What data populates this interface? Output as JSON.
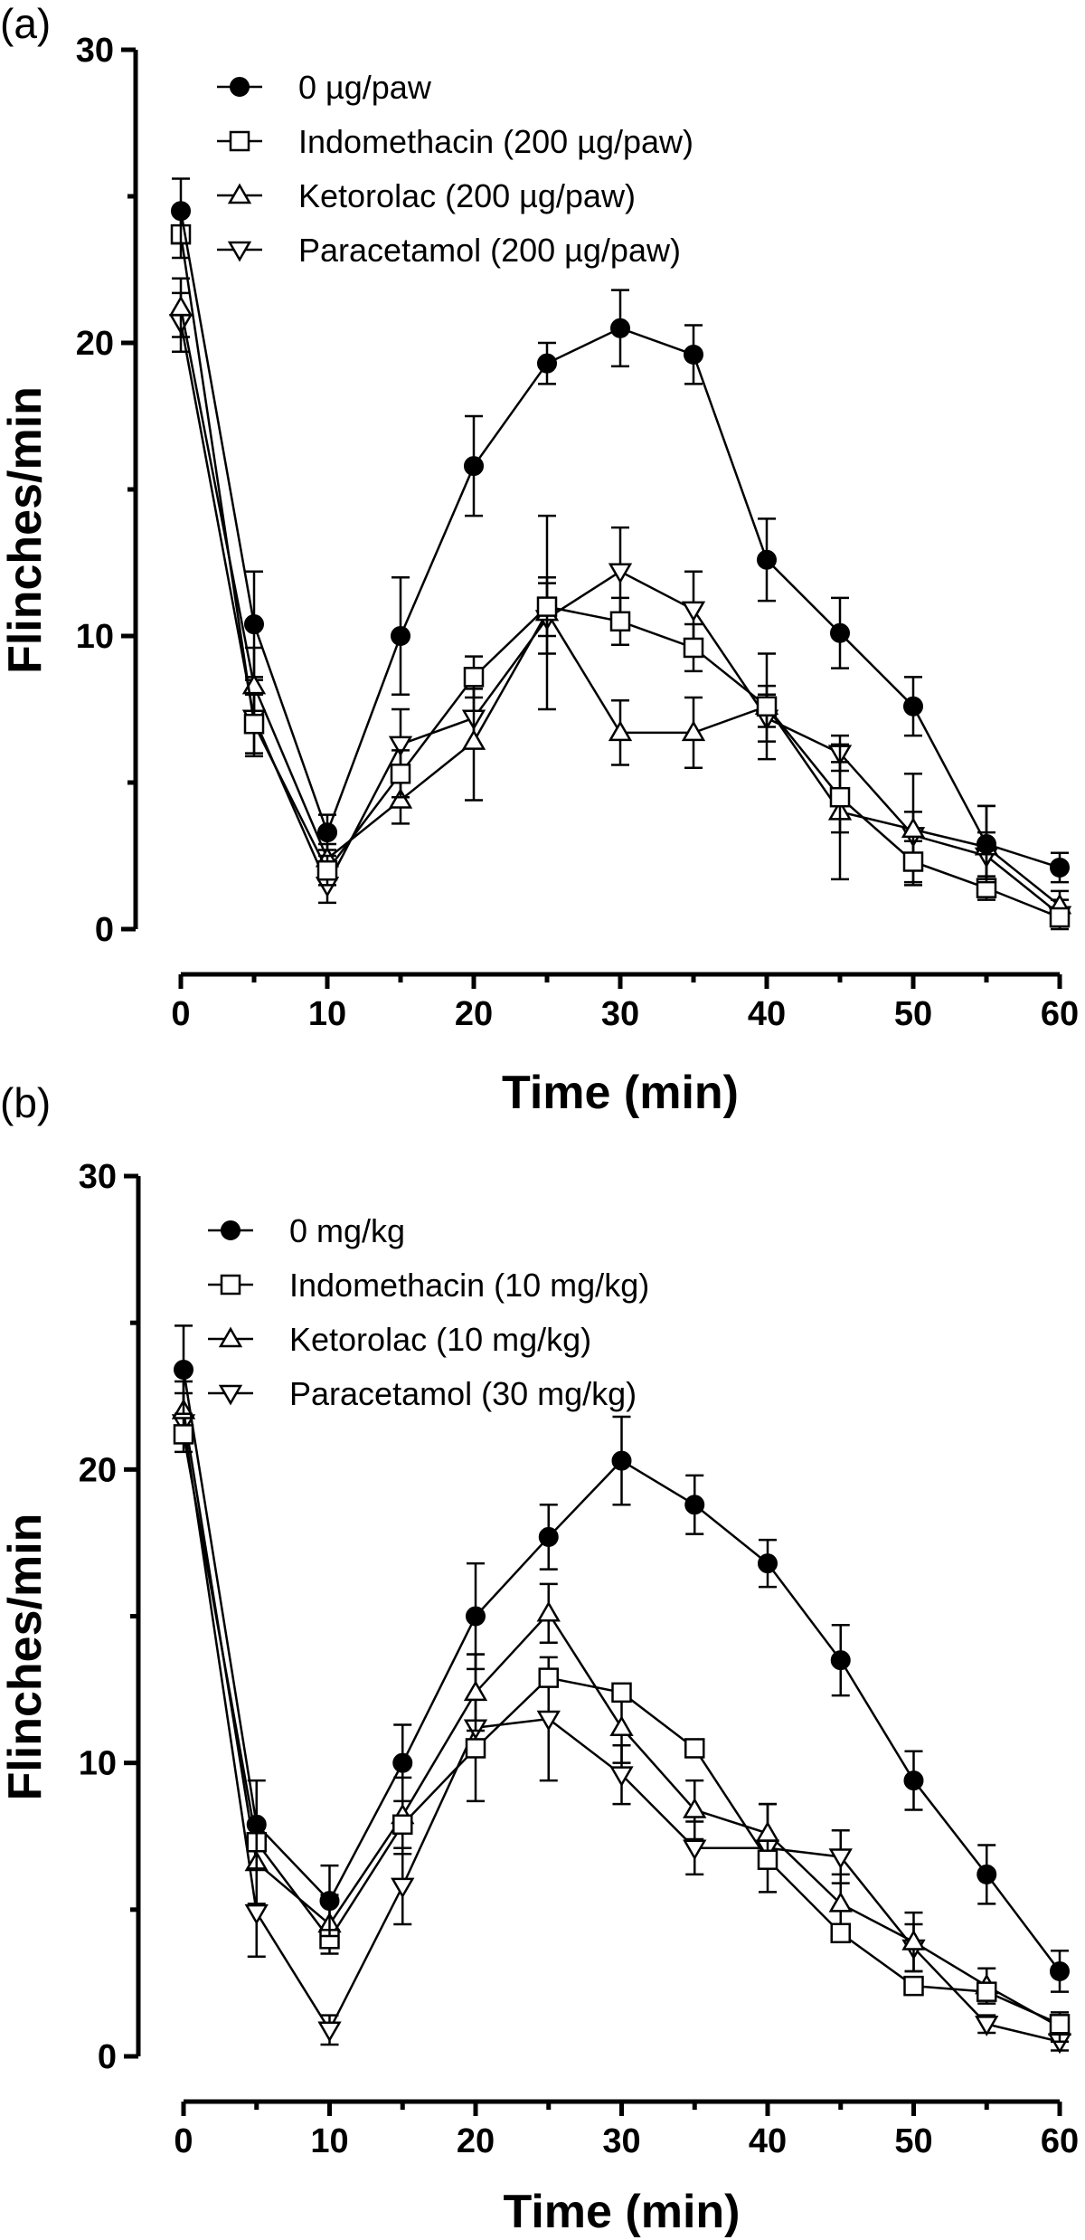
{
  "chart_data": [
    {
      "type": "line",
      "panel_label": "(a)",
      "xlabel": "Time (min)",
      "ylabel": "Flinches/min",
      "xlim": [
        0,
        60
      ],
      "ylim": [
        0,
        30
      ],
      "xticks": [
        0,
        10,
        20,
        30,
        40,
        50,
        60
      ],
      "yticks": [
        0,
        10,
        20,
        30
      ],
      "legend_position": "top-left",
      "x": [
        0,
        5,
        10,
        15,
        20,
        25,
        30,
        35,
        40,
        45,
        50,
        55,
        60
      ],
      "series": [
        {
          "name": "0 µg/paw",
          "marker": "circle-filled",
          "values": [
            24.5,
            10.4,
            3.3,
            10.0,
            15.8,
            19.3,
            20.5,
            19.6,
            12.6,
            10.1,
            7.6,
            2.9,
            2.1
          ],
          "errors": [
            1.1,
            1.8,
            0.6,
            2.0,
            1.7,
            0.7,
            1.3,
            1.0,
            1.4,
            1.2,
            1.0,
            1.3,
            0.5
          ]
        },
        {
          "name": "Indomethacin (200 µg/paw)",
          "marker": "square-open",
          "values": [
            23.7,
            7.0,
            2.0,
            5.3,
            8.6,
            11.0,
            10.5,
            9.6,
            7.6,
            4.5,
            2.3,
            1.4,
            0.4
          ],
          "errors": [
            0.8,
            1.0,
            0.5,
            0.8,
            0.7,
            1.0,
            0.8,
            0.8,
            0.7,
            1.2,
            0.7,
            0.4,
            0.3
          ]
        },
        {
          "name": "Ketorolac (200 µg/paw)",
          "marker": "triangle-up-open",
          "values": [
            21.2,
            8.3,
            2.4,
            4.4,
            6.4,
            10.8,
            6.7,
            6.7,
            7.6,
            4.0,
            3.4,
            2.8,
            0.8
          ],
          "errors": [
            1.0,
            1.3,
            0.5,
            0.8,
            2.0,
            3.3,
            1.1,
            1.2,
            1.8,
            2.3,
            1.9,
            1.4,
            0.5
          ]
        },
        {
          "name": "Paracetamol (200 µg/paw)",
          "marker": "triangle-down-open",
          "values": [
            20.7,
            7.2,
            1.5,
            6.3,
            7.2,
            10.6,
            12.2,
            10.9,
            7.2,
            6.0,
            3.2,
            2.5,
            0.5
          ],
          "errors": [
            1.0,
            1.3,
            0.6,
            1.2,
            1.0,
            1.2,
            1.5,
            1.3,
            0.8,
            0.6,
            0.8,
            0.8,
            0.5
          ]
        }
      ]
    },
    {
      "type": "line",
      "panel_label": "(b)",
      "xlabel": "Time (min)",
      "ylabel": "Flinches/min",
      "xlim": [
        0,
        60
      ],
      "ylim": [
        0,
        30
      ],
      "xticks": [
        0,
        10,
        20,
        30,
        40,
        50,
        60
      ],
      "yticks": [
        0,
        10,
        20,
        30
      ],
      "legend_position": "top-left",
      "x": [
        0,
        5,
        10,
        15,
        20,
        25,
        30,
        35,
        40,
        45,
        50,
        55,
        60
      ],
      "series": [
        {
          "name": "0 mg/kg",
          "marker": "circle-filled",
          "values": [
            23.4,
            7.9,
            5.3,
            10.0,
            15.0,
            17.7,
            20.3,
            18.8,
            16.8,
            13.5,
            9.4,
            6.2,
            2.9
          ],
          "errors": [
            1.5,
            1.5,
            1.2,
            1.3,
            1.8,
            1.1,
            1.5,
            1.0,
            0.8,
            1.2,
            1.0,
            1.0,
            0.7
          ]
        },
        {
          "name": "Indomethacin (10 mg/kg)",
          "marker": "square-open",
          "values": [
            21.2,
            7.3,
            4.0,
            7.9,
            10.5,
            12.9,
            12.4,
            10.5,
            6.7,
            4.2,
            2.4,
            2.2,
            1.1
          ]
        },
        {
          "name": "Ketorolac (10 mg/kg)",
          "marker": "triangle-up-open",
          "values": [
            22.0,
            6.6,
            4.5,
            8.2,
            12.4,
            15.1,
            11.2,
            8.4,
            7.6,
            5.2,
            3.9,
            2.4,
            1.0
          ],
          "errors": [
            1.0,
            1.4,
            1.0,
            1.3,
            1.3,
            1.0,
            1.2,
            1.0,
            1.0,
            1.0,
            1.0,
            0.6,
            0.5
          ]
        },
        {
          "name": "Paracetamol (30 mg/kg)",
          "marker": "triangle-down-open",
          "values": [
            21.6,
            4.9,
            0.9,
            5.8,
            11.2,
            11.5,
            9.6,
            7.1,
            7.1,
            6.8,
            3.7,
            1.1,
            0.5
          ],
          "errors": [
            1.0,
            1.5,
            0.5,
            1.3,
            2.5,
            2.1,
            1.0,
            0.9,
            1.5,
            0.9,
            0.8,
            0.3,
            0.3
          ]
        }
      ]
    }
  ]
}
